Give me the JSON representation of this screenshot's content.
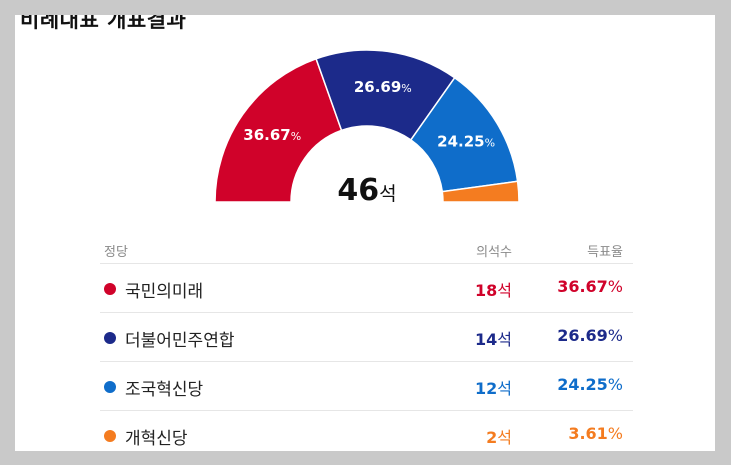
{
  "title": "비례대표 개표결과",
  "total": {
    "value": "46",
    "unit": "석"
  },
  "headers": {
    "party": "정당",
    "seats": "의석수",
    "rate": "득표율"
  },
  "chart_data": {
    "type": "pie",
    "total_seats": 46,
    "series": [
      {
        "name": "국민의미래",
        "seats": 18,
        "rate": 36.67,
        "color": "#d0022a"
      },
      {
        "name": "더불어민주연합",
        "seats": 14,
        "rate": 26.69,
        "color": "#1c2a8a"
      },
      {
        "name": "조국혁신당",
        "seats": 12,
        "rate": 24.25,
        "color": "#0f6dca"
      },
      {
        "name": "개혁신당",
        "seats": 2,
        "rate": 3.61,
        "color": "#f47c20"
      }
    ]
  },
  "rows": [
    {
      "name": "국민의미래",
      "seats": "18",
      "seat_unit": "석",
      "rate": "36.67",
      "rate_unit": "%"
    },
    {
      "name": "더불어민주연합",
      "seats": "14",
      "seat_unit": "석",
      "rate": "26.69",
      "rate_unit": "%"
    },
    {
      "name": "조국혁신당",
      "seats": "12",
      "seat_unit": "석",
      "rate": "24.25",
      "rate_unit": "%"
    },
    {
      "name": "개혁신당",
      "seats": "2",
      "seat_unit": "석",
      "rate": "3.61",
      "rate_unit": "%"
    }
  ],
  "colors": {
    "ppp": "#d0022a",
    "dem": "#1c2a8a",
    "cho": "#0f6dca",
    "reform": "#f47c20"
  }
}
